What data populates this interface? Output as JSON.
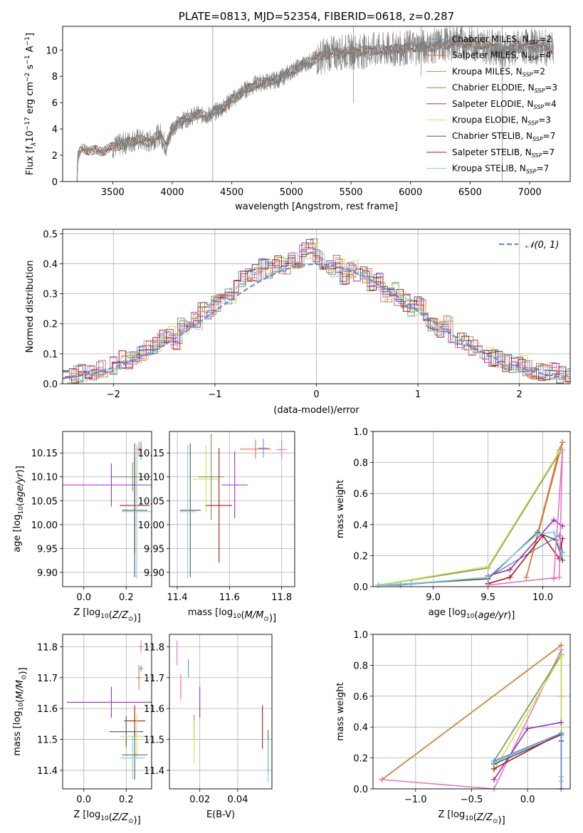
{
  "chart_data": [
    {
      "id": "spectrum",
      "type": "line",
      "title": "PLATE=0813, MJD=52354, FIBERID=0618, z=0.287",
      "xlabel": "wavelength [Angstrom, rest frame]",
      "ylabel": "Flux [f$_\\lambda$10$^{-17}$ erg cm$^{-2}$ s$^{-1}$ A$^{-1}$]",
      "ylabel_parts": [
        "Flux [f",
        "λ",
        "10",
        "−17",
        " erg cm",
        "−2",
        " s",
        "−1",
        " A",
        "−1",
        "]"
      ],
      "xlim": [
        3080,
        7340
      ],
      "ylim": [
        0,
        11.8
      ],
      "xticks": [
        3500,
        4000,
        4500,
        5000,
        5500,
        6000,
        6500,
        7000
      ],
      "yticks": [
        0,
        2,
        4,
        6,
        8,
        10
      ],
      "legend_position": "top-right",
      "legend": [
        {
          "name": "Chabrier MILES, N",
          "sub": "SSP",
          "tail": "=2",
          "color": "#6b8fd6"
        },
        {
          "name": "Salpeter MILES, N",
          "sub": "SSP",
          "tail": "=4",
          "color": "#e8714a"
        },
        {
          "name": "Kroupa MILES, N",
          "sub": "SSP",
          "tail": "=2",
          "color": "#c8853a"
        },
        {
          "name": "Chabrier ELODIE, N",
          "sub": "SSP",
          "tail": "=3",
          "color": "#6f9a5a"
        },
        {
          "name": "Salpeter ELODIE, N",
          "sub": "SSP",
          "tail": "=4",
          "color": "#9c2fb5"
        },
        {
          "name": "Kroupa ELODIE, N",
          "sub": "SSP",
          "tail": "=3",
          "color": "#d6e04a"
        },
        {
          "name": "Chabrier STELIB, N",
          "sub": "SSP",
          "tail": "=7",
          "color": "#555555"
        },
        {
          "name": "Salpeter STELIB, N",
          "sub": "SSP",
          "tail": "=7",
          "color": "#b01818"
        },
        {
          "name": "Kroupa STELIB, N",
          "sub": "SSP",
          "tail": "=7",
          "color": "#7fcfe0"
        }
      ],
      "data_color": "#7f7f7f",
      "data_anchor_points": [
        [
          3195,
          0.0
        ],
        [
          3210,
          1.9
        ],
        [
          3240,
          2.5
        ],
        [
          3300,
          2.4
        ],
        [
          3400,
          2.3
        ],
        [
          3500,
          2.6
        ],
        [
          3600,
          2.9
        ],
        [
          3700,
          3.2
        ],
        [
          3800,
          3.0
        ],
        [
          3900,
          3.6
        ],
        [
          3950,
          2.6
        ],
        [
          4000,
          4.1
        ],
        [
          4100,
          4.7
        ],
        [
          4200,
          5.1
        ],
        [
          4300,
          5.0
        ],
        [
          4400,
          5.5
        ],
        [
          4500,
          6.2
        ],
        [
          4600,
          6.9
        ],
        [
          4700,
          7.4
        ],
        [
          4800,
          7.6
        ],
        [
          4900,
          7.8
        ],
        [
          5000,
          8.4
        ],
        [
          5100,
          8.9
        ],
        [
          5200,
          9.3
        ],
        [
          5300,
          9.7
        ],
        [
          5400,
          9.8
        ],
        [
          5500,
          9.9
        ],
        [
          5600,
          9.9
        ],
        [
          5700,
          10.0
        ],
        [
          5800,
          10.0
        ],
        [
          5900,
          10.1
        ],
        [
          6000,
          10.2
        ],
        [
          6200,
          10.3
        ],
        [
          6400,
          10.6
        ],
        [
          6600,
          10.4
        ],
        [
          6800,
          10.0
        ],
        [
          7000,
          10.3
        ],
        [
          7200,
          10.1
        ]
      ]
    },
    {
      "id": "residuals",
      "type": "line",
      "xlabel": "(data-model)/error",
      "ylabel": "Normed distribution",
      "xlim": [
        -2.5,
        2.5
      ],
      "ylim": [
        0,
        0.515
      ],
      "xticks": [
        -2,
        -1,
        0,
        1,
        2
      ],
      "yticks": [
        0.0,
        0.1,
        0.2,
        0.3,
        0.4,
        0.5
      ],
      "grid": true,
      "legend_position": "top-right",
      "legend": [
        {
          "name": "𝒩(0, 1)",
          "color": "#5b8fd9",
          "style": "dashed"
        }
      ],
      "gaussian": {
        "mu": 0,
        "sigma": 1
      },
      "bin_width": 0.1,
      "bin_start": -2.5,
      "approx_step_values": [
        0.025,
        0.03,
        0.035,
        0.04,
        0.035,
        0.05,
        0.055,
        0.06,
        0.08,
        0.075,
        0.09,
        0.1,
        0.12,
        0.13,
        0.15,
        0.165,
        0.14,
        0.19,
        0.2,
        0.21,
        0.25,
        0.24,
        0.27,
        0.3,
        0.29,
        0.33,
        0.35,
        0.36,
        0.37,
        0.4,
        0.38,
        0.4,
        0.39,
        0.41,
        0.38,
        0.44,
        0.46,
        0.42,
        0.41,
        0.38,
        0.4,
        0.36,
        0.38,
        0.37,
        0.36,
        0.33,
        0.34,
        0.3,
        0.31,
        0.29,
        0.27,
        0.25,
        0.26,
        0.22,
        0.2,
        0.18,
        0.2,
        0.16,
        0.14,
        0.13,
        0.12,
        0.1,
        0.1,
        0.085,
        0.08,
        0.07,
        0.06,
        0.065,
        0.05,
        0.045,
        0.04,
        0.035,
        0.04,
        0.03,
        0.025
      ]
    },
    {
      "id": "age-vs-Z",
      "type": "scatter",
      "xlabel": "Z [log$_{10}$($Z/Z_\\odot$)]",
      "ylabel": "age  [log$_{10}$($age/yr$)]",
      "xlim": [
        -0.1,
        0.32
      ],
      "ylim": [
        9.87,
        10.195
      ],
      "xticks": [
        0.0,
        0.2
      ],
      "yticks": [
        9.9,
        9.95,
        10.0,
        10.05,
        10.1,
        10.15
      ],
      "grid": true,
      "points": [
        {
          "x": 0.26,
          "y": 10.158,
          "xerr": 0.01,
          "yerr": 0.015,
          "color": "#e8714a"
        },
        {
          "x": 0.27,
          "y": 10.16,
          "xerr": 0.005,
          "yerr": 0.01,
          "color": "#e377c2"
        },
        {
          "x": 0.27,
          "y": 10.155,
          "xerr": 0.005,
          "yerr": 0.02,
          "color": "#6b8fd6"
        },
        {
          "x": 0.25,
          "y": 10.1,
          "xerr": 0.02,
          "yerr": 0.04,
          "color": "#d6e04a"
        },
        {
          "x": 0.23,
          "y": 10.1,
          "xerr": 0.1,
          "yerr": 0.03,
          "color": "#6f9a5a"
        },
        {
          "x": 0.13,
          "y": 10.083,
          "xerr": 0.24,
          "yerr": 0.045,
          "color": "#9c2fb5"
        },
        {
          "x": 0.24,
          "y": 10.04,
          "xerr": 0.07,
          "yerr": 0.1,
          "color": "#b01818"
        },
        {
          "x": 0.24,
          "y": 10.03,
          "xerr": 0.06,
          "yerr": 0.14,
          "color": "#555555"
        },
        {
          "x": 0.25,
          "y": 10.027,
          "xerr": 0.07,
          "yerr": 0.14,
          "color": "#7fcfe0"
        }
      ]
    },
    {
      "id": "age-vs-mass",
      "type": "scatter",
      "xlabel": "mass [log$_{10}$($M/M_\\odot$)]",
      "ylabel": "",
      "xlim": [
        11.37,
        11.85
      ],
      "ylim": [
        9.87,
        10.195
      ],
      "xticks": [
        11.4,
        11.6,
        11.8
      ],
      "yticks": [
        9.9,
        9.95,
        10.0,
        10.05,
        10.1,
        10.15
      ],
      "grid": true,
      "points": [
        {
          "x": 11.7,
          "y": 10.158,
          "xerr": 0.06,
          "yerr": 0.02,
          "color": "#e8714a"
        },
        {
          "x": 11.8,
          "y": 10.157,
          "xerr": 0.02,
          "yerr": 0.02,
          "color": "#e377c2"
        },
        {
          "x": 11.73,
          "y": 10.16,
          "xerr": 0.02,
          "yerr": 0.02,
          "color": "#6b8fd6"
        },
        {
          "x": 11.51,
          "y": 10.095,
          "xerr": 0.05,
          "yerr": 0.07,
          "color": "#d6e04a"
        },
        {
          "x": 11.53,
          "y": 10.1,
          "xerr": 0.05,
          "yerr": 0.09,
          "color": "#6f9a5a"
        },
        {
          "x": 11.62,
          "y": 10.083,
          "xerr": 0.05,
          "yerr": 0.07,
          "color": "#9c2fb5"
        },
        {
          "x": 11.56,
          "y": 10.04,
          "xerr": 0.05,
          "yerr": 0.12,
          "color": "#b01818"
        },
        {
          "x": 11.45,
          "y": 10.03,
          "xerr": 0.04,
          "yerr": 0.14,
          "color": "#555555"
        },
        {
          "x": 11.44,
          "y": 10.027,
          "xerr": 0.03,
          "yerr": 0.14,
          "color": "#7fcfe0"
        }
      ]
    },
    {
      "id": "massweight-vs-age",
      "type": "line",
      "xlabel": "age  [log$_{10}$($age/yr$)]",
      "ylabel": "mass weight",
      "xlim": [
        8.45,
        10.25
      ],
      "ylim": [
        0,
        1.0
      ],
      "xticks": [
        9.0,
        9.5,
        10.0
      ],
      "yticks": [
        0.0,
        0.2,
        0.4,
        0.6,
        0.8,
        1.0
      ],
      "grid": true,
      "series": [
        {
          "color": "#6b8fd6",
          "x": [
            8.5,
            8.7,
            9.5,
            10.15,
            10.18
          ],
          "y": [
            0.01,
            0.01,
            0.06,
            0.33,
            0.22
          ]
        },
        {
          "color": "#e8714a",
          "x": [
            9.85,
            10.18,
            10.15,
            9.85
          ],
          "y": [
            0.06,
            0.93,
            0.88,
            0.06
          ]
        },
        {
          "color": "#c8853a",
          "x": [
            9.85,
            10.18
          ],
          "y": [
            0.06,
            0.93
          ]
        },
        {
          "color": "#6f9a5a",
          "x": [
            8.5,
            9.5,
            10.15
          ],
          "y": [
            0.01,
            0.12,
            0.86
          ]
        },
        {
          "color": "#9c2fb5",
          "x": [
            9.5,
            9.7,
            10.1,
            10.18
          ],
          "y": [
            0.07,
            0.11,
            0.43,
            0.39
          ]
        },
        {
          "color": "#d6e04a",
          "x": [
            8.5,
            9.5,
            10.15
          ],
          "y": [
            0.01,
            0.13,
            0.87
          ]
        },
        {
          "color": "#555555",
          "x": [
            8.5,
            8.8,
            9.5,
            9.95,
            10.12,
            10.18
          ],
          "y": [
            0.01,
            0.02,
            0.05,
            0.35,
            0.3,
            0.17
          ]
        },
        {
          "color": "#b01818",
          "x": [
            9.5,
            9.7,
            10.0,
            10.15,
            10.18
          ],
          "y": [
            0.02,
            0.06,
            0.33,
            0.18,
            0.31
          ]
        },
        {
          "color": "#7fcfe0",
          "x": [
            8.5,
            8.8,
            9.5,
            9.95,
            10.1,
            10.18
          ],
          "y": [
            0.01,
            0.02,
            0.06,
            0.34,
            0.35,
            0.2
          ]
        },
        {
          "color": "#e377c2",
          "x": [
            9.5,
            10.15,
            10.18,
            10.1
          ],
          "y": [
            0.01,
            0.06,
            0.88,
            0.05
          ]
        }
      ]
    },
    {
      "id": "mass-vs-Z",
      "type": "scatter",
      "xlabel": "Z [log$_{10}$($Z/Z_\\odot$)]",
      "ylabel": "mass [log$_{10}$($M/M_\\odot$)]",
      "xlim": [
        -0.1,
        0.32
      ],
      "ylim": [
        11.34,
        11.84
      ],
      "xticks": [
        0.0,
        0.2
      ],
      "yticks": [
        11.4,
        11.5,
        11.6,
        11.7,
        11.8
      ],
      "grid": true,
      "points": [
        {
          "x": 0.27,
          "y": 11.8,
          "xerr": 0.01,
          "yerr": 0.02,
          "color": "#e377c2"
        },
        {
          "x": 0.27,
          "y": 11.73,
          "xerr": 0.01,
          "yerr": 0.01,
          "color": "#6b8fd6"
        },
        {
          "x": 0.26,
          "y": 11.7,
          "xerr": 0.01,
          "yerr": 0.04,
          "color": "#e8714a"
        },
        {
          "x": 0.13,
          "y": 11.62,
          "xerr": 0.21,
          "yerr": 0.05,
          "color": "#9c2fb5"
        },
        {
          "x": 0.24,
          "y": 11.56,
          "xerr": 0.05,
          "yerr": 0.05,
          "color": "#b01818"
        },
        {
          "x": 0.2,
          "y": 11.525,
          "xerr": 0.08,
          "yerr": 0.05,
          "color": "#555555"
        },
        {
          "x": 0.25,
          "y": 11.51,
          "xerr": 0.08,
          "yerr": 0.07,
          "color": "#d6e04a"
        },
        {
          "x": 0.24,
          "y": 11.45,
          "xerr": 0.06,
          "yerr": 0.08,
          "color": "#555555"
        },
        {
          "x": 0.23,
          "y": 11.44,
          "xerr": 0.06,
          "yerr": 0.07,
          "color": "#7fcfe0"
        }
      ]
    },
    {
      "id": "mass-vs-EBV",
      "type": "scatter",
      "xlabel": "E(B-V)",
      "ylabel": "",
      "xlim": [
        0.004,
        0.058
      ],
      "ylim": [
        11.34,
        11.84
      ],
      "xticks": [
        0.02,
        0.04
      ],
      "yticks": [
        11.4,
        11.5,
        11.6,
        11.7,
        11.8
      ],
      "grid": true,
      "points": [
        {
          "x": 0.008,
          "y": 11.78,
          "xerr": 0,
          "yerr": 0.04,
          "color": "#e377c2"
        },
        {
          "x": 0.014,
          "y": 11.73,
          "xerr": 0,
          "yerr": 0.03,
          "color": "#6b8fd6"
        },
        {
          "x": 0.01,
          "y": 11.67,
          "xerr": 0,
          "yerr": 0.04,
          "color": "#e8714a"
        },
        {
          "x": 0.02,
          "y": 11.62,
          "xerr": 0,
          "yerr": 0.05,
          "color": "#9c2fb5"
        },
        {
          "x": 0.017,
          "y": 11.54,
          "xerr": 0,
          "yerr": 0.04,
          "color": "#6f9a5a"
        },
        {
          "x": 0.017,
          "y": 11.49,
          "xerr": 0,
          "yerr": 0.07,
          "color": "#d6e04a"
        },
        {
          "x": 0.053,
          "y": 11.54,
          "xerr": 0,
          "yerr": 0.07,
          "color": "#b01818"
        },
        {
          "x": 0.056,
          "y": 11.46,
          "xerr": 0,
          "yerr": 0.07,
          "color": "#555555"
        },
        {
          "x": 0.056,
          "y": 11.43,
          "xerr": 0,
          "yerr": 0.07,
          "color": "#7fcfe0"
        }
      ]
    },
    {
      "id": "massweight-vs-Z",
      "type": "line",
      "xlabel": "Z [log$_{10}$($Z/Z_\\odot$)]",
      "ylabel": "mass weight",
      "xlim": [
        -1.38,
        0.38
      ],
      "ylim": [
        0,
        1.0
      ],
      "xticks": [
        -1.0,
        -0.5,
        0.0
      ],
      "yticks": [
        0.0,
        0.2,
        0.4,
        0.6,
        0.8,
        1.0
      ],
      "grid": true,
      "series": [
        {
          "color": "#e8714a",
          "x": [
            -1.3,
            0.3
          ],
          "y": [
            0.06,
            0.93
          ]
        },
        {
          "color": "#c8853a",
          "x": [
            -1.3,
            0.3
          ],
          "y": [
            0.06,
            0.93
          ]
        },
        {
          "color": "#e377c2",
          "x": [
            -1.3,
            -0.3,
            0.3,
            0.3
          ],
          "y": [
            0.06,
            0.0,
            0.9,
            0.6
          ]
        },
        {
          "color": "#6f9a5a",
          "x": [
            -0.3,
            0.3,
            0.3
          ],
          "y": [
            0.18,
            0.87,
            0.05
          ]
        },
        {
          "color": "#d6e04a",
          "x": [
            -0.3,
            0.3,
            0.3
          ],
          "y": [
            0.12,
            0.86,
            0.05
          ]
        },
        {
          "color": "#9c2fb5",
          "x": [
            -0.3,
            0.0,
            0.3
          ],
          "y": [
            0.06,
            0.39,
            0.43
          ]
        },
        {
          "color": "#555555",
          "x": [
            -0.3,
            0.3,
            0.3
          ],
          "y": [
            0.16,
            0.35,
            0.0
          ]
        },
        {
          "color": "#b01818",
          "x": [
            -0.3,
            0.3,
            0.3
          ],
          "y": [
            0.13,
            0.36,
            0.31
          ]
        },
        {
          "color": "#7fcfe0",
          "x": [
            -0.3,
            0.3,
            0.3
          ],
          "y": [
            0.17,
            0.36,
            0.08
          ]
        },
        {
          "color": "#6b8fd6",
          "x": [
            -0.3,
            0.3,
            0.3
          ],
          "y": [
            0.18,
            0.36,
            0.0
          ]
        }
      ]
    }
  ]
}
